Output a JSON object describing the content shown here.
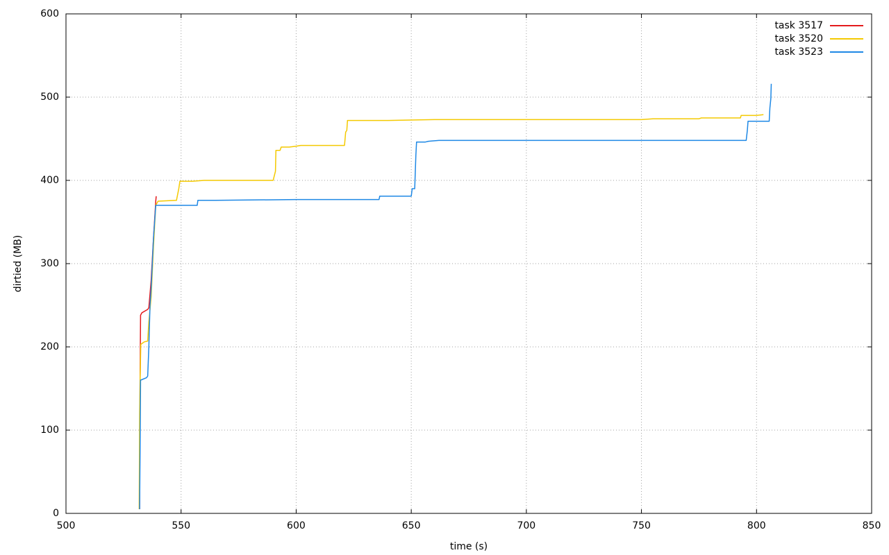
{
  "chart_data": {
    "type": "line",
    "x_label": "time (s)",
    "y_label": "dirtied (MB)",
    "xlim": [
      500,
      850
    ],
    "xticks": [
      500,
      550,
      600,
      650,
      700,
      750,
      800,
      850
    ],
    "ylim": [
      0,
      600
    ],
    "yticks": [
      0,
      100,
      200,
      300,
      400,
      500,
      600
    ],
    "grid": true,
    "legend": "top-right",
    "series": [
      {
        "name": "task 3517",
        "color": "#e41a1c",
        "x": [
          532,
          532.2,
          532.4,
          533,
          535.5,
          536,
          537,
          538,
          539,
          539.2
        ],
        "values": [
          5,
          160,
          238,
          241,
          245,
          247,
          280,
          330,
          375,
          381
        ]
      },
      {
        "name": "task 3520",
        "color": "#f4c900",
        "x": [
          531.8,
          532,
          532.2,
          532.5,
          534,
          535.5,
          536,
          537,
          538,
          539,
          540,
          548,
          549,
          549.5,
          555,
          560,
          590,
          591,
          591.2,
          593,
          593.5,
          597,
          600,
          602,
          621,
          621.5,
          622,
          622.3,
          640,
          660,
          700,
          750,
          755,
          775,
          776,
          793,
          793.3,
          800,
          803
        ],
        "values": [
          5,
          120,
          160,
          203,
          206,
          207,
          230,
          260,
          320,
          370,
          375,
          376,
          390,
          399,
          399,
          400,
          400,
          411,
          436,
          436,
          440,
          440,
          441,
          442,
          442,
          458,
          460,
          472,
          472,
          473,
          473,
          473,
          474,
          474,
          475,
          475,
          478,
          478,
          479
        ]
      },
      {
        "name": "task 3523",
        "color": "#1e88e5",
        "x": [
          532,
          532.2,
          532.4,
          535,
          535.5,
          536,
          536.5,
          537,
          538,
          539,
          557,
          557.3,
          565,
          600,
          636,
          636.3,
          645,
          650,
          650.4,
          651.5,
          652,
          652.3,
          656,
          657.5,
          662,
          700,
          750,
          795.5,
          796,
          796.3,
          805.5,
          805.8,
          806.2,
          806.4
        ],
        "values": [
          5,
          80,
          160,
          163,
          165,
          200,
          250,
          270,
          330,
          370,
          370,
          376,
          376,
          377,
          377,
          381,
          381,
          381,
          390,
          390,
          430,
          446,
          446,
          447,
          448,
          448,
          448,
          448,
          460,
          471,
          471,
          487,
          498,
          516
        ]
      }
    ]
  }
}
